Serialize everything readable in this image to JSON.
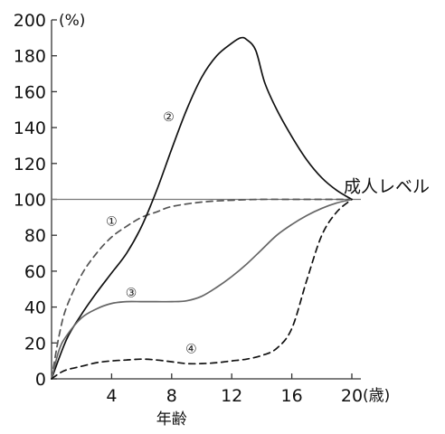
{
  "chart_data": {
    "type": "line",
    "ylabel": "(%)",
    "xlabel": "年齢",
    "x_unit": "(歳)",
    "xlim": [
      0,
      20
    ],
    "ylim": [
      0,
      200
    ],
    "x_ticks": [
      4,
      8,
      12,
      16,
      20
    ],
    "y_ticks": [
      0,
      20,
      40,
      60,
      80,
      100,
      120,
      140,
      160,
      180,
      200
    ],
    "grid": false,
    "reference_line": {
      "y": 100,
      "label": "成人レベル"
    },
    "series": [
      {
        "name": "①",
        "style": "dashed",
        "color": "#555555",
        "x": [
          0,
          0.5,
          1,
          2,
          3,
          4,
          5,
          6,
          7,
          8,
          10,
          12,
          14,
          16,
          18,
          20
        ],
        "y": [
          0,
          24,
          40,
          58,
          70,
          79,
          85,
          90,
          93,
          96,
          98.5,
          99.5,
          100,
          100,
          100,
          100
        ]
      },
      {
        "name": "②",
        "style": "solid",
        "color": "#111111",
        "x": [
          0,
          1,
          2,
          3,
          4,
          5,
          6,
          7,
          8,
          9,
          10,
          11,
          12,
          12.6,
          13,
          13.6,
          14.2,
          15,
          16,
          17,
          18,
          19,
          20
        ],
        "y": [
          0,
          22,
          36,
          48,
          59,
          70,
          85,
          105,
          128,
          150,
          168,
          180,
          187,
          190,
          189,
          183,
          165,
          150,
          135,
          122,
          112,
          105,
          100
        ]
      },
      {
        "name": "③",
        "style": "solid",
        "color": "#666666",
        "x": [
          0,
          0.5,
          1,
          2,
          3,
          4,
          5,
          6,
          7,
          8,
          9,
          10,
          11,
          12,
          13,
          14,
          15,
          16,
          17,
          18,
          19,
          20
        ],
        "y": [
          0,
          16,
          24,
          34,
          39,
          42,
          43,
          43,
          43,
          43,
          43.5,
          46,
          51,
          57,
          64,
          72,
          80,
          86,
          91,
          95,
          98,
          100
        ]
      },
      {
        "name": "④",
        "style": "dashed",
        "color": "#111111",
        "x": [
          0,
          0.5,
          1,
          2,
          3,
          4,
          5,
          6,
          7,
          8,
          9,
          10,
          11,
          12,
          13,
          14,
          15,
          16,
          17,
          18,
          19,
          20
        ],
        "y": [
          0,
          3,
          5,
          7,
          9,
          10,
          10.5,
          11,
          10.5,
          9.5,
          8.5,
          8.5,
          9,
          10,
          11,
          13,
          17,
          28,
          55,
          80,
          93,
          100
        ]
      }
    ],
    "series_label_positions": [
      {
        "name": "①",
        "x": 4,
        "y": 88
      },
      {
        "name": "②",
        "x": 7.8,
        "y": 146
      },
      {
        "name": "③",
        "x": 5.3,
        "y": 48
      },
      {
        "name": "④",
        "x": 9.3,
        "y": 17
      }
    ]
  }
}
